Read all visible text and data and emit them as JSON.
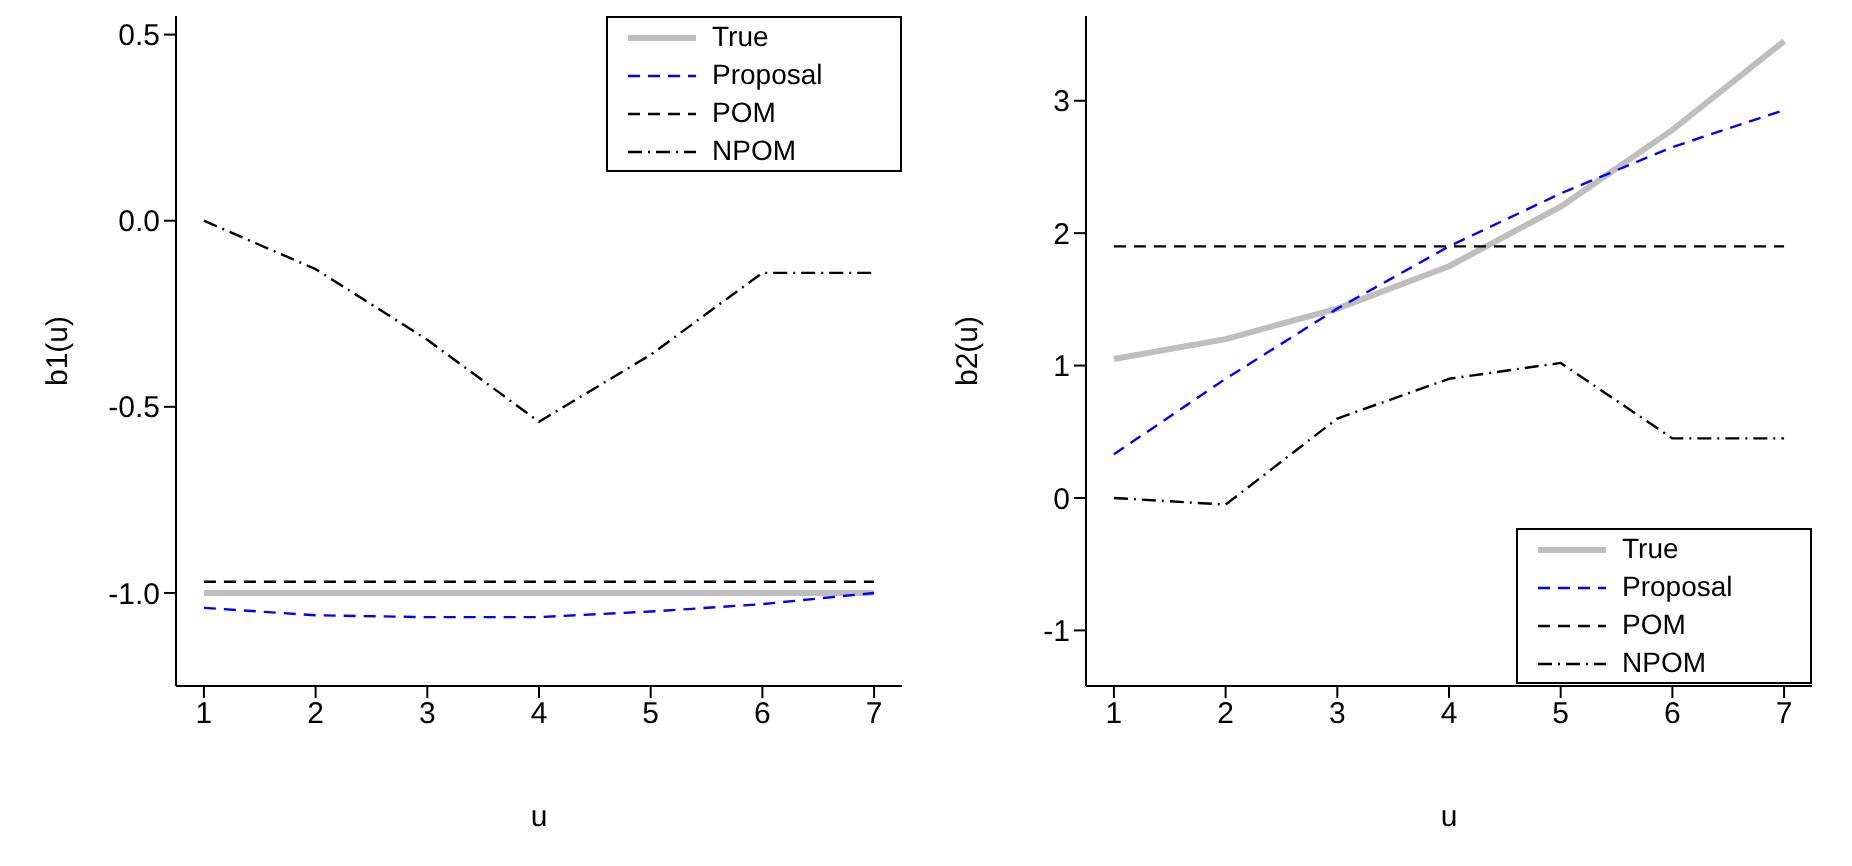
{
  "chart_data": [
    {
      "type": "line",
      "xlabel": "u",
      "ylabel": "b1(u)",
      "x": [
        1,
        2,
        3,
        4,
        5,
        6,
        7
      ],
      "xlim": [
        0.75,
        7.25
      ],
      "xticks": [
        1,
        2,
        3,
        4,
        5,
        6,
        7
      ],
      "ylim": [
        -1.25,
        0.55
      ],
      "yticks": [
        {
          "value": -1,
          "label": "-1.0"
        },
        {
          "value": -0.5,
          "label": "-0.5"
        },
        {
          "value": 0,
          "label": "0.0"
        },
        {
          "value": 0.5,
          "label": "0.5"
        }
      ],
      "grid": false,
      "legend": "top right",
      "marker": "none",
      "series": [
        {
          "name": "True",
          "color": "#bebebe",
          "line_style": "solid",
          "values": [
            -1,
            -1,
            -1,
            -1,
            -1,
            -1,
            -1
          ]
        },
        {
          "name": "Proposal",
          "color": "#0000ff",
          "line_style": "dashed",
          "values": [
            -1.04,
            -1.06,
            -1.065,
            -1.065,
            -1.05,
            -1.03,
            -1.0
          ]
        },
        {
          "name": "POM",
          "color": "#000000",
          "line_style": "dashed",
          "values": [
            -0.97,
            -0.97,
            -0.97,
            -0.97,
            -0.97,
            -0.97,
            -0.97
          ]
        },
        {
          "name": "NPOM",
          "color": "#000000",
          "line_style": "dotted",
          "values": [
            0.0,
            -0.13,
            -0.32,
            -0.54,
            -0.36,
            -0.14,
            -0.14
          ]
        }
      ]
    },
    {
      "type": "line",
      "xlabel": "u",
      "ylabel": "b2(u)",
      "x": [
        1,
        2,
        3,
        4,
        5,
        6,
        7
      ],
      "xlim": [
        0.75,
        7.25
      ],
      "xticks": [
        1,
        2,
        3,
        4,
        5,
        6,
        7
      ],
      "ylim": [
        -1.42,
        3.64
      ],
      "yticks": [
        -1,
        0,
        1,
        2,
        3
      ],
      "grid": false,
      "legend": "bottom right",
      "marker": "none",
      "series": [
        {
          "name": "True",
          "color": "#bebebe",
          "line_style": "solid",
          "values": [
            1.05,
            1.2,
            1.43,
            1.75,
            2.2,
            2.78,
            3.45
          ]
        },
        {
          "name": "Proposal",
          "color": "#0000ff",
          "line_style": "dashed",
          "values": [
            0.33,
            0.9,
            1.43,
            1.9,
            2.3,
            2.65,
            2.93
          ]
        },
        {
          "name": "POM",
          "color": "#000000",
          "line_style": "dashed",
          "values": [
            1.9,
            1.9,
            1.9,
            1.9,
            1.9,
            1.9,
            1.9
          ]
        },
        {
          "name": "NPOM",
          "color": "#000000",
          "line_style": "dotted",
          "values": [
            0.0,
            -0.05,
            0.6,
            0.9,
            1.02,
            0.45,
            0.45
          ]
        }
      ]
    }
  ]
}
